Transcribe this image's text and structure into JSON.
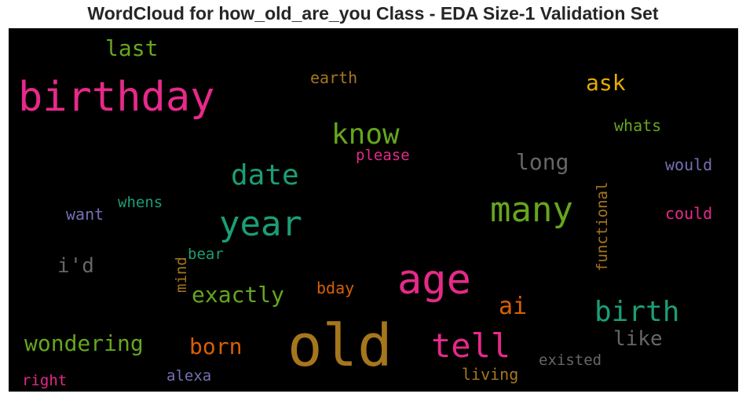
{
  "chart_data": {
    "type": "wordcloud",
    "title": "WordCloud for how_old_are_you Class - EDA Size-1 Validation Set",
    "background": "#000000",
    "words": [
      {
        "text": "old",
        "color": "#a6761d",
        "orientation": "horizontal"
      },
      {
        "text": "birthday",
        "color": "#e7298a",
        "orientation": "horizontal"
      },
      {
        "text": "age",
        "color": "#e7298a",
        "orientation": "horizontal"
      },
      {
        "text": "many",
        "color": "#66a61e",
        "orientation": "horizontal"
      },
      {
        "text": "year",
        "color": "#1b9e77",
        "orientation": "horizontal"
      },
      {
        "text": "tell",
        "color": "#e7298a",
        "orientation": "horizontal"
      },
      {
        "text": "know",
        "color": "#66a61e",
        "orientation": "horizontal"
      },
      {
        "text": "birth",
        "color": "#1b9e77",
        "orientation": "horizontal"
      },
      {
        "text": "date",
        "color": "#1b9e77",
        "orientation": "horizontal"
      },
      {
        "text": "wondering",
        "color": "#66a61e",
        "orientation": "horizontal"
      },
      {
        "text": "exactly",
        "color": "#66a61e",
        "orientation": "horizontal"
      },
      {
        "text": "long",
        "color": "#666666",
        "orientation": "horizontal"
      },
      {
        "text": "born",
        "color": "#d95f02",
        "orientation": "horizontal"
      },
      {
        "text": "last",
        "color": "#66a61e",
        "orientation": "horizontal"
      },
      {
        "text": "ask",
        "color": "#e6ab02",
        "orientation": "horizontal"
      },
      {
        "text": "ai",
        "color": "#d95f02",
        "orientation": "horizontal"
      },
      {
        "text": "like",
        "color": "#666666",
        "orientation": "horizontal"
      },
      {
        "text": "i'd",
        "color": "#666666",
        "orientation": "horizontal"
      },
      {
        "text": "whats",
        "color": "#66a61e",
        "orientation": "horizontal"
      },
      {
        "text": "would",
        "color": "#7570b3",
        "orientation": "horizontal"
      },
      {
        "text": "could",
        "color": "#e7298a",
        "orientation": "horizontal"
      },
      {
        "text": "please",
        "color": "#e7298a",
        "orientation": "horizontal"
      },
      {
        "text": "earth",
        "color": "#a6761d",
        "orientation": "horizontal"
      },
      {
        "text": "whens",
        "color": "#1b9e77",
        "orientation": "horizontal"
      },
      {
        "text": "want",
        "color": "#7570b3",
        "orientation": "horizontal"
      },
      {
        "text": "bear",
        "color": "#1b9e77",
        "orientation": "horizontal"
      },
      {
        "text": "mind",
        "color": "#a6761d",
        "orientation": "vertical"
      },
      {
        "text": "functional",
        "color": "#a6761d",
        "orientation": "vertical"
      },
      {
        "text": "bday",
        "color": "#d95f02",
        "orientation": "horizontal"
      },
      {
        "text": "existed",
        "color": "#666666",
        "orientation": "horizontal"
      },
      {
        "text": "living",
        "color": "#a6761d",
        "orientation": "horizontal"
      },
      {
        "text": "alexa",
        "color": "#7570b3",
        "orientation": "horizontal"
      },
      {
        "text": "right",
        "color": "#e7298a",
        "orientation": "horizontal"
      }
    ]
  }
}
